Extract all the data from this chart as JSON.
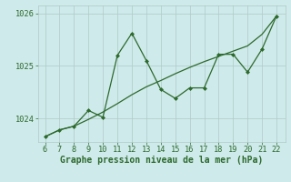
{
  "x": [
    6,
    7,
    8,
    9,
    10,
    11,
    12,
    13,
    14,
    15,
    16,
    17,
    18,
    19,
    20,
    21,
    22
  ],
  "y_data": [
    1023.65,
    1023.78,
    1023.85,
    1024.15,
    1024.02,
    1025.2,
    1025.62,
    1025.1,
    1024.55,
    1024.38,
    1024.58,
    1024.58,
    1025.22,
    1025.22,
    1024.88,
    1025.32,
    1025.95
  ],
  "y_trend": [
    1023.65,
    1023.78,
    1023.85,
    1023.98,
    1024.12,
    1024.28,
    1024.45,
    1024.6,
    1024.72,
    1024.85,
    1024.97,
    1025.08,
    1025.18,
    1025.28,
    1025.38,
    1025.6,
    1025.95
  ],
  "line_color": "#2d6a2d",
  "bg_color": "#ceeaea",
  "grid_color": "#b0c8c8",
  "xlabel": "Graphe pression niveau de la mer (hPa)",
  "ylim_min": 1023.55,
  "ylim_max": 1026.15,
  "yticks": [
    1024,
    1025,
    1026
  ],
  "xticks": [
    6,
    7,
    8,
    9,
    10,
    11,
    12,
    13,
    14,
    15,
    16,
    17,
    18,
    19,
    20,
    21,
    22
  ],
  "xlabel_fontsize": 7.0,
  "tick_fontsize": 6.2
}
